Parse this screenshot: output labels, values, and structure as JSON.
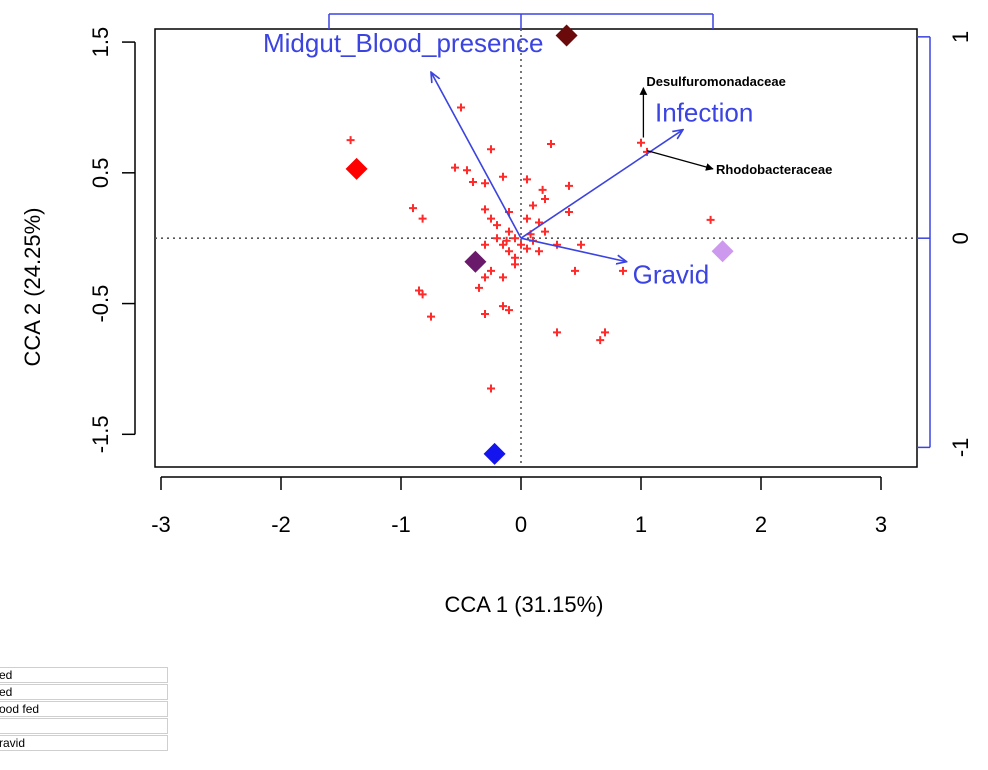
{
  "chart_data": {
    "type": "scatter",
    "xlabel": "CCA 1 (31.15%)",
    "ylabel": "CCA 2 (24.25%)",
    "xlim": [
      -3.05,
      3.3
    ],
    "ylim": [
      -1.75,
      1.6
    ],
    "x_ticks": [
      -3,
      -2,
      -1,
      0,
      1,
      2,
      3
    ],
    "y_ticks": [
      -1.5,
      -0.5,
      0.5,
      1.5
    ],
    "y_tick_labels": [
      "-1.5",
      "-0.5",
      "0.5",
      "1.5"
    ],
    "top_axis_ticks": [
      -1.6,
      0.0,
      1.6
    ],
    "right_axis": {
      "ticks": [
        1,
        0,
        -1
      ],
      "tick_labels": [
        "1",
        "0",
        "-1"
      ],
      "color": "#3b43e0"
    },
    "grid": false,
    "reference_lines": "dotted lines at x=0 and y=0",
    "sample_points": {
      "color": "#ff2a2a",
      "marker": "plus",
      "points": [
        [
          -1.42,
          0.75
        ],
        [
          -0.5,
          1.0
        ],
        [
          -0.25,
          0.68
        ],
        [
          0.25,
          0.72
        ],
        [
          1.0,
          0.73
        ],
        [
          1.05,
          0.66
        ],
        [
          1.58,
          0.14
        ],
        [
          -0.9,
          0.23
        ],
        [
          -0.82,
          0.15
        ],
        [
          -0.55,
          0.54
        ],
        [
          -0.45,
          0.52
        ],
        [
          -0.4,
          0.43
        ],
        [
          -0.3,
          0.42
        ],
        [
          -0.15,
          0.47
        ],
        [
          0.05,
          0.45
        ],
        [
          0.18,
          0.37
        ],
        [
          0.2,
          0.3
        ],
        [
          0.1,
          0.25
        ],
        [
          0.4,
          0.4
        ],
        [
          -0.3,
          0.22
        ],
        [
          -0.25,
          0.15
        ],
        [
          -0.1,
          0.2
        ],
        [
          0.05,
          0.15
        ],
        [
          0.15,
          0.12
        ],
        [
          0.2,
          0.05
        ],
        [
          0.4,
          0.2
        ],
        [
          -0.2,
          0.1
        ],
        [
          -0.1,
          0.05
        ],
        [
          -0.05,
          0.0
        ],
        [
          0.0,
          -0.05
        ],
        [
          -0.15,
          -0.05
        ],
        [
          -0.1,
          -0.1
        ],
        [
          0.05,
          -0.08
        ],
        [
          0.1,
          -0.02
        ],
        [
          -0.2,
          0.0
        ],
        [
          -0.05,
          -0.15
        ],
        [
          0.15,
          -0.1
        ],
        [
          -0.3,
          -0.05
        ],
        [
          0.08,
          0.03
        ],
        [
          -0.12,
          -0.02
        ],
        [
          0.3,
          -0.05
        ],
        [
          0.5,
          -0.05
        ],
        [
          -0.3,
          -0.3
        ],
        [
          -0.25,
          -0.25
        ],
        [
          -0.35,
          -0.38
        ],
        [
          -0.15,
          -0.3
        ],
        [
          -0.05,
          -0.2
        ],
        [
          0.45,
          -0.25
        ],
        [
          0.85,
          -0.25
        ],
        [
          -0.85,
          -0.4
        ],
        [
          -0.82,
          -0.43
        ],
        [
          -0.75,
          -0.6
        ],
        [
          -0.3,
          -0.58
        ],
        [
          -0.15,
          -0.52
        ],
        [
          -0.1,
          -0.55
        ],
        [
          0.3,
          -0.72
        ],
        [
          0.7,
          -0.72
        ],
        [
          0.66,
          -0.78
        ],
        [
          -0.25,
          -1.15
        ]
      ]
    },
    "group_centroids": {
      "marker": "diamond",
      "points": [
        {
          "x": 0.38,
          "y": 1.55,
          "color": "#6b0a0a"
        },
        {
          "x": -1.37,
          "y": 0.53,
          "color": "#ff0000"
        },
        {
          "x": 1.68,
          "y": -0.1,
          "color": "#cc99ee"
        },
        {
          "x": -0.38,
          "y": -0.18,
          "color": "#6a1a6a"
        },
        {
          "x": -0.22,
          "y": -1.65,
          "color": "#1414ee"
        }
      ]
    },
    "environmental_vectors": {
      "color": "#3b43e0",
      "vectors": [
        {
          "label": "Midgut_Blood_presence",
          "x": -0.75,
          "y": 1.27
        },
        {
          "label": "Infection",
          "x": 1.35,
          "y": 0.83
        },
        {
          "label": "Gravid",
          "x": 0.88,
          "y": -0.18
        }
      ]
    },
    "taxa_vectors": {
      "color": "#000000",
      "vectors": [
        {
          "label": "Desulfuromonadaceae",
          "x0": 1.02,
          "y0": 0.77,
          "x1": 1.02,
          "y1": 1.15
        },
        {
          "label": "Rhodobacteraceae",
          "x0": 1.05,
          "y0": 0.67,
          "x1": 1.6,
          "y1": 0.53
        }
      ]
    }
  },
  "legend": {
    "rows": [
      "ed",
      "ed",
      "ood fed",
      "",
      "ravid"
    ]
  }
}
